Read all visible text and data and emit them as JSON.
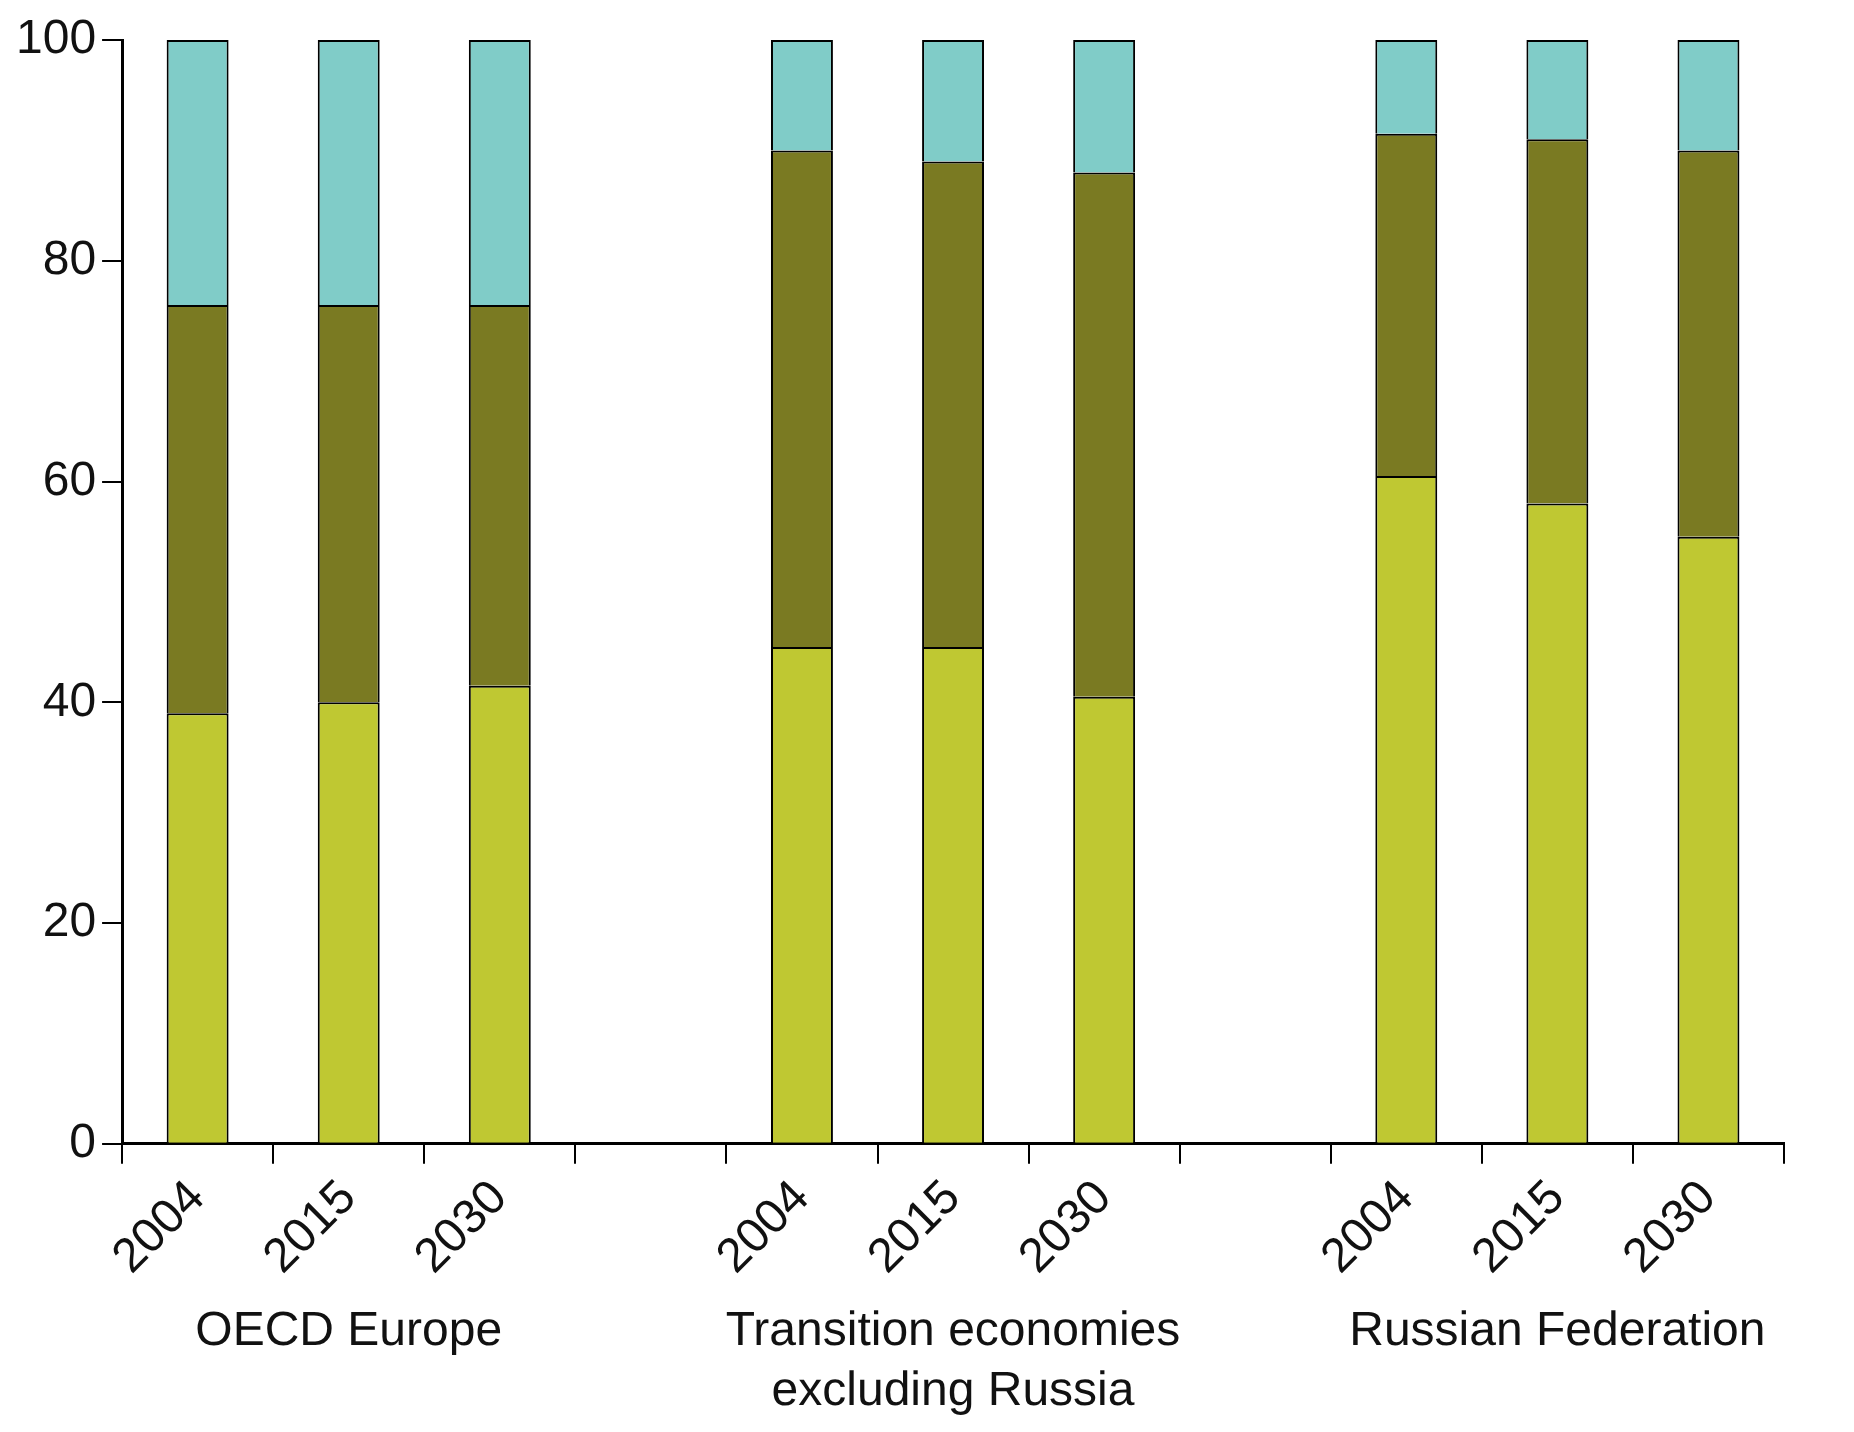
{
  "chart_data": {
    "type": "bar",
    "stacked": true,
    "categories": [
      "2004",
      "2015",
      "2030",
      null,
      "2004",
      "2015",
      "2030",
      null,
      "2004",
      "2015",
      "2030"
    ],
    "series": [
      {
        "color": "#bfc832",
        "values": [
          39,
          40,
          41.5,
          null,
          45,
          45,
          40.5,
          null,
          60.5,
          58,
          55
        ]
      },
      {
        "color": "#7a7a22",
        "values": [
          37,
          36,
          34.5,
          null,
          45,
          44,
          47.5,
          null,
          31,
          33,
          35
        ]
      },
      {
        "color": "#80ccc8",
        "values": [
          24,
          24,
          24,
          null,
          10,
          11,
          12,
          null,
          8.5,
          9,
          10
        ]
      }
    ],
    "ylim": [
      0,
      100
    ],
    "yticks": [
      0,
      20,
      40,
      60,
      80,
      100
    ],
    "grid": false,
    "legend": false,
    "annotations": [
      "OECD Europe",
      "Transition economies excluding Russia",
      "Russian Federation"
    ]
  }
}
